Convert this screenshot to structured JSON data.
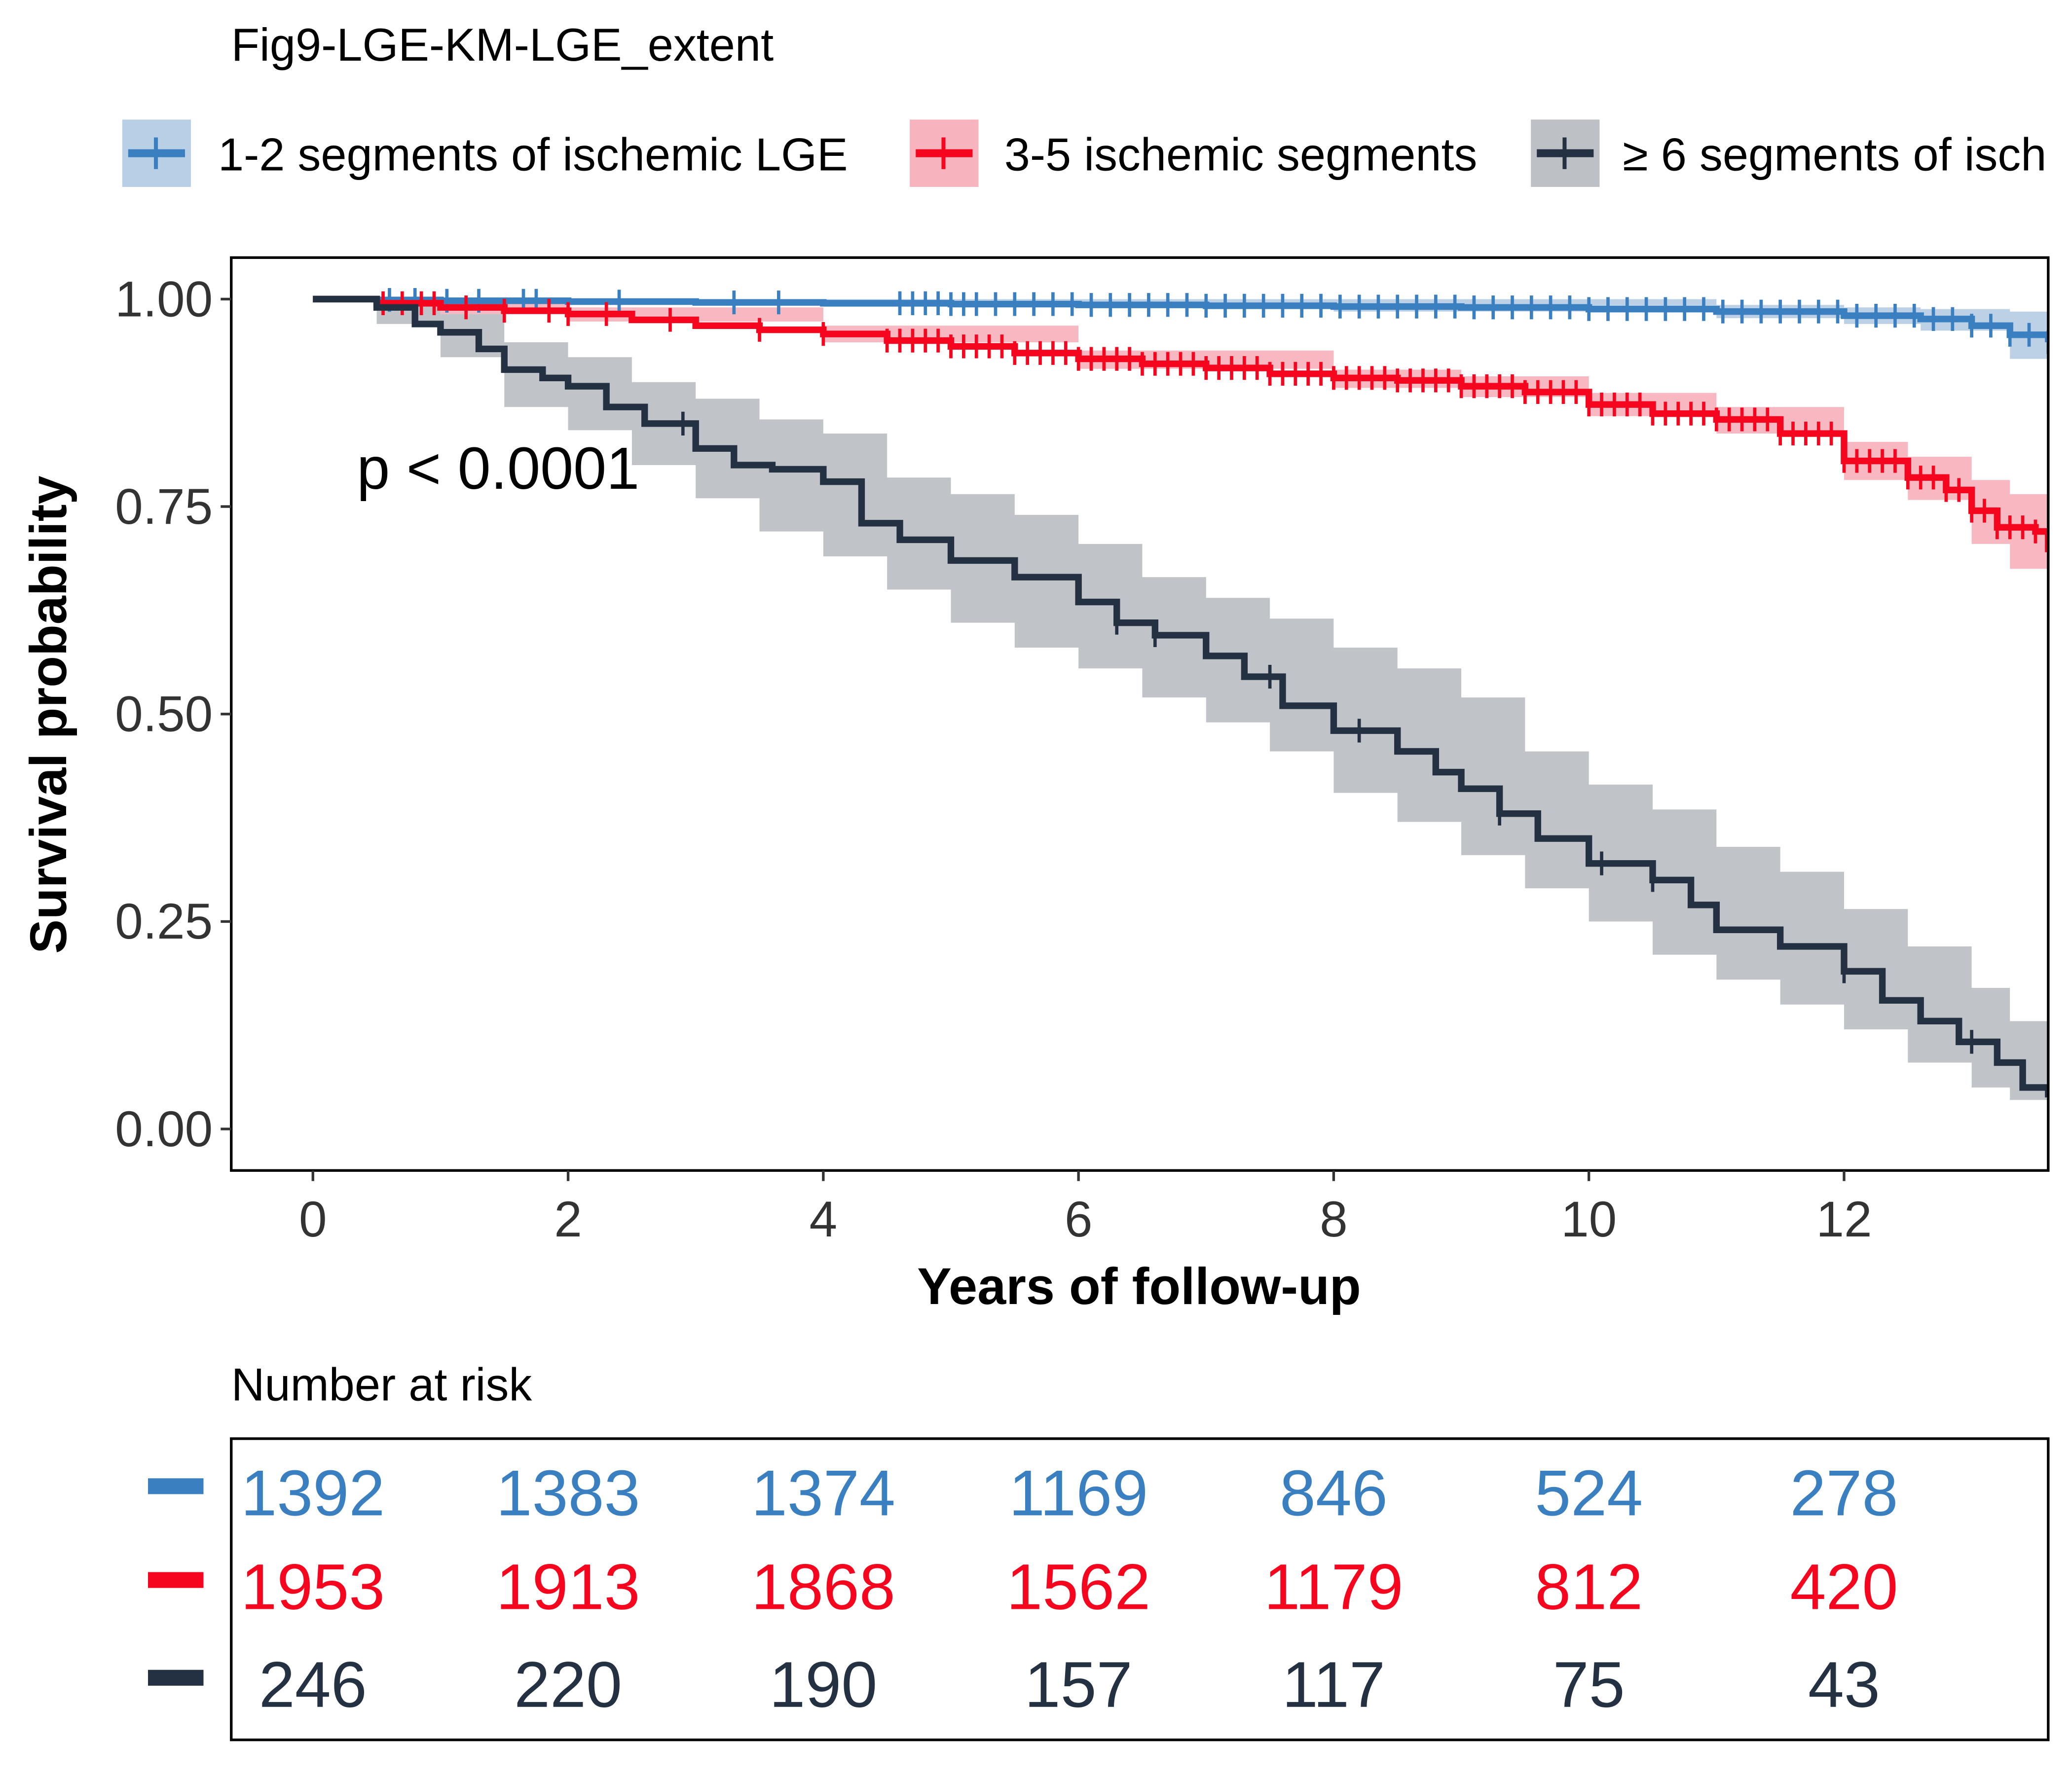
{
  "title": "Fig9-LGE-KM-LGE_extent",
  "legend_entries": [
    "1-2 segments of ischemic LGE",
    "3-5 ischemic segments",
    "≥ 6 segments of isch"
  ],
  "colors": {
    "blue": "#3A7FC0",
    "red": "#F5061E",
    "dark": "#243142",
    "blue_ci": "#B9CFE5",
    "red_ci": "#F8B4BE",
    "dark_ci": "#BDC1C6"
  },
  "p_value_label": "p < 0.0001",
  "risk_table": {
    "title": "Number at risk",
    "rows": [
      [
        "1392",
        "1383",
        "1374",
        "1169",
        "846",
        "524",
        "278"
      ],
      [
        "1953",
        "1913",
        "1868",
        "1562",
        "1179",
        "812",
        "420"
      ],
      [
        "246",
        "220",
        "190",
        "157",
        "117",
        "75",
        "43"
      ]
    ]
  },
  "chart_data": {
    "type": "line",
    "title": "Fig9-LGE-KM-LGE_extent",
    "xlabel": "Years of follow-up",
    "ylabel": "Survival probability",
    "xlim": [
      -0.64,
      13.6
    ],
    "ylim": [
      -0.05,
      1.05
    ],
    "x_ticks": [
      0,
      2,
      4,
      6,
      8,
      10,
      12
    ],
    "y_ticks": [
      0.0,
      0.25,
      0.5,
      0.75,
      1.0
    ],
    "x_tick_labels": [
      "0",
      "2",
      "4",
      "6",
      "8",
      "10",
      "12"
    ],
    "y_tick_labels": [
      "0.00",
      "0.25",
      "0.50",
      "0.75",
      "1.00"
    ],
    "grid": false,
    "legend_position": "top",
    "series": [
      {
        "name": "1-2 segments of ischemic LGE",
        "color_key": "blue",
        "points": [
          [
            0,
            1.0
          ],
          [
            0.5,
            0.999
          ],
          [
            1.0,
            0.998
          ],
          [
            2.0,
            0.997
          ],
          [
            3.0,
            0.996
          ],
          [
            4.0,
            0.995
          ],
          [
            5.0,
            0.994
          ],
          [
            6.0,
            0.993
          ],
          [
            7.0,
            0.992
          ],
          [
            8.0,
            0.991
          ],
          [
            9.0,
            0.99
          ],
          [
            10.0,
            0.988
          ],
          [
            11.0,
            0.985
          ],
          [
            12.0,
            0.98
          ],
          [
            12.6,
            0.976
          ],
          [
            13.0,
            0.968
          ],
          [
            13.3,
            0.957
          ],
          [
            13.6,
            0.948
          ]
        ],
        "ci_upper": [
          [
            0,
            1.0
          ],
          [
            4,
            1.0
          ],
          [
            8,
            1.0
          ],
          [
            11,
            0.993
          ],
          [
            12,
            0.99
          ],
          [
            12.6,
            0.988
          ],
          [
            13.3,
            0.985
          ],
          [
            13.6,
            0.983
          ]
        ],
        "ci_lower": [
          [
            0,
            1.0
          ],
          [
            4,
            0.991
          ],
          [
            8,
            0.985
          ],
          [
            11,
            0.977
          ],
          [
            12,
            0.97
          ],
          [
            12.6,
            0.962
          ],
          [
            13.3,
            0.928
          ],
          [
            13.6,
            0.912
          ]
        ],
        "censor_x": [
          0.6,
          0.8,
          1.05,
          1.3,
          1.65,
          1.75,
          2.4,
          3.3,
          3.65,
          4.6,
          4.7,
          4.8,
          4.9,
          5.0,
          5.1,
          5.2,
          5.35,
          5.5,
          5.65,
          5.8,
          5.95,
          6.1,
          6.25,
          6.4,
          6.55,
          6.7,
          6.85,
          7.0,
          7.15,
          7.3,
          7.45,
          7.6,
          7.75,
          7.9,
          8.05,
          8.2,
          8.35,
          8.5,
          8.65,
          8.8,
          8.95,
          9.1,
          9.25,
          9.4,
          9.55,
          9.7,
          9.85,
          10.0,
          10.15,
          10.3,
          10.45,
          10.6,
          10.75,
          10.9,
          11.05,
          11.2,
          11.35,
          11.5,
          11.65,
          11.8,
          11.95,
          12.1,
          12.25,
          12.4,
          12.55,
          12.7,
          12.85,
          13.0,
          13.15,
          13.3,
          13.45,
          13.6
        ]
      },
      {
        "name": "3-5 ischemic segments",
        "color_key": "red",
        "points": [
          [
            0,
            1.0
          ],
          [
            0.5,
            0.995
          ],
          [
            1.0,
            0.99
          ],
          [
            1.5,
            0.986
          ],
          [
            2.0,
            0.982
          ],
          [
            2.5,
            0.975
          ],
          [
            3.0,
            0.968
          ],
          [
            3.5,
            0.963
          ],
          [
            4.0,
            0.958
          ],
          [
            4.5,
            0.95
          ],
          [
            5.0,
            0.943
          ],
          [
            5.5,
            0.935
          ],
          [
            6.0,
            0.928
          ],
          [
            6.5,
            0.922
          ],
          [
            7.0,
            0.917
          ],
          [
            7.5,
            0.91
          ],
          [
            8.0,
            0.905
          ],
          [
            8.5,
            0.902
          ],
          [
            9.0,
            0.895
          ],
          [
            9.5,
            0.888
          ],
          [
            10.0,
            0.873
          ],
          [
            10.5,
            0.862
          ],
          [
            11.0,
            0.855
          ],
          [
            11.5,
            0.838
          ],
          [
            12.0,
            0.805
          ],
          [
            12.5,
            0.785
          ],
          [
            12.8,
            0.77
          ],
          [
            13.0,
            0.745
          ],
          [
            13.2,
            0.725
          ],
          [
            13.5,
            0.72
          ],
          [
            13.6,
            0.695
          ]
        ],
        "ci_upper": [
          [
            0,
            1.0
          ],
          [
            1,
            0.999
          ],
          [
            2,
            0.99
          ],
          [
            4,
            0.968
          ],
          [
            6,
            0.938
          ],
          [
            8,
            0.915
          ],
          [
            9,
            0.907
          ],
          [
            10,
            0.887
          ],
          [
            11,
            0.87
          ],
          [
            12,
            0.828
          ],
          [
            12.5,
            0.81
          ],
          [
            13,
            0.782
          ],
          [
            13.3,
            0.765
          ],
          [
            13.6,
            0.752
          ]
        ],
        "ci_lower": [
          [
            0,
            1.0
          ],
          [
            1,
            0.982
          ],
          [
            2,
            0.973
          ],
          [
            4,
            0.948
          ],
          [
            6,
            0.916
          ],
          [
            8,
            0.893
          ],
          [
            9,
            0.882
          ],
          [
            10,
            0.859
          ],
          [
            11,
            0.838
          ],
          [
            12,
            0.782
          ],
          [
            12.5,
            0.758
          ],
          [
            13,
            0.705
          ],
          [
            13.3,
            0.675
          ],
          [
            13.6,
            0.652
          ]
        ],
        "censor_x": [
          0.55,
          0.7,
          0.85,
          0.95,
          1.2,
          1.5,
          1.85,
          2.0,
          2.3,
          2.8,
          3.5,
          4.0,
          4.5,
          4.6,
          4.7,
          4.8,
          4.9,
          5.0,
          5.1,
          5.2,
          5.3,
          5.4,
          5.5,
          5.6,
          5.7,
          5.8,
          5.9,
          6.0,
          6.1,
          6.2,
          6.3,
          6.4,
          6.5,
          6.6,
          6.7,
          6.8,
          6.9,
          7.0,
          7.1,
          7.2,
          7.3,
          7.4,
          7.5,
          7.6,
          7.7,
          7.8,
          7.9,
          8.0,
          8.1,
          8.2,
          8.3,
          8.4,
          8.5,
          8.6,
          8.7,
          8.8,
          8.9,
          9.0,
          9.1,
          9.2,
          9.3,
          9.4,
          9.5,
          9.6,
          9.7,
          9.8,
          9.9,
          10.0,
          10.1,
          10.2,
          10.3,
          10.4,
          10.5,
          10.6,
          10.7,
          10.8,
          10.9,
          11.0,
          11.1,
          11.2,
          11.3,
          11.4,
          11.5,
          11.6,
          11.7,
          11.8,
          11.9,
          12.0,
          12.1,
          12.2,
          12.3,
          12.4,
          12.5,
          12.6,
          12.7,
          12.8,
          12.9,
          13.0,
          13.1,
          13.2,
          13.3,
          13.4,
          13.5
        ]
      },
      {
        "name": "≥ 6 segments of isch",
        "color_key": "dark",
        "points": [
          [
            0,
            1.0
          ],
          [
            0.5,
            0.99
          ],
          [
            0.8,
            0.97
          ],
          [
            1.0,
            0.96
          ],
          [
            1.3,
            0.94
          ],
          [
            1.5,
            0.915
          ],
          [
            1.8,
            0.905
          ],
          [
            2.0,
            0.895
          ],
          [
            2.3,
            0.87
          ],
          [
            2.6,
            0.85
          ],
          [
            3.0,
            0.82
          ],
          [
            3.3,
            0.8
          ],
          [
            3.6,
            0.795
          ],
          [
            4.0,
            0.78
          ],
          [
            4.3,
            0.73
          ],
          [
            4.6,
            0.71
          ],
          [
            5.0,
            0.685
          ],
          [
            5.5,
            0.665
          ],
          [
            6.0,
            0.635
          ],
          [
            6.3,
            0.61
          ],
          [
            6.6,
            0.595
          ],
          [
            7.0,
            0.57
          ],
          [
            7.3,
            0.545
          ],
          [
            7.6,
            0.51
          ],
          [
            8.0,
            0.48
          ],
          [
            8.5,
            0.455
          ],
          [
            8.8,
            0.43
          ],
          [
            9.0,
            0.41
          ],
          [
            9.3,
            0.38
          ],
          [
            9.6,
            0.35
          ],
          [
            10.0,
            0.32
          ],
          [
            10.5,
            0.3
          ],
          [
            10.8,
            0.27
          ],
          [
            11.0,
            0.24
          ],
          [
            11.5,
            0.22
          ],
          [
            12.0,
            0.19
          ],
          [
            12.3,
            0.155
          ],
          [
            12.6,
            0.13
          ],
          [
            12.9,
            0.105
          ],
          [
            13.2,
            0.08
          ],
          [
            13.4,
            0.05
          ],
          [
            13.6,
            0.038
          ]
        ],
        "ci_upper": [
          [
            0,
            1.0
          ],
          [
            0.5,
            1.0
          ],
          [
            1.0,
            0.982
          ],
          [
            1.5,
            0.948
          ],
          [
            2.0,
            0.93
          ],
          [
            2.5,
            0.9
          ],
          [
            3.0,
            0.88
          ],
          [
            3.5,
            0.855
          ],
          [
            4.0,
            0.838
          ],
          [
            4.5,
            0.785
          ],
          [
            5.0,
            0.765
          ],
          [
            5.5,
            0.74
          ],
          [
            6.0,
            0.705
          ],
          [
            6.5,
            0.665
          ],
          [
            7.0,
            0.64
          ],
          [
            7.5,
            0.615
          ],
          [
            8.0,
            0.58
          ],
          [
            8.5,
            0.555
          ],
          [
            9.0,
            0.52
          ],
          [
            9.5,
            0.455
          ],
          [
            10.0,
            0.415
          ],
          [
            10.5,
            0.385
          ],
          [
            11.0,
            0.34
          ],
          [
            11.5,
            0.31
          ],
          [
            12.0,
            0.265
          ],
          [
            12.5,
            0.22
          ],
          [
            13.0,
            0.17
          ],
          [
            13.3,
            0.13
          ],
          [
            13.6,
            0.095
          ]
        ],
        "ci_lower": [
          [
            0,
            1.0
          ],
          [
            0.5,
            0.97
          ],
          [
            1.0,
            0.93
          ],
          [
            1.5,
            0.87
          ],
          [
            2.0,
            0.842
          ],
          [
            2.5,
            0.8
          ],
          [
            3.0,
            0.76
          ],
          [
            3.5,
            0.72
          ],
          [
            4.0,
            0.69
          ],
          [
            4.5,
            0.65
          ],
          [
            5.0,
            0.61
          ],
          [
            5.5,
            0.58
          ],
          [
            6.0,
            0.555
          ],
          [
            6.5,
            0.52
          ],
          [
            7.0,
            0.49
          ],
          [
            7.5,
            0.455
          ],
          [
            8.0,
            0.405
          ],
          [
            8.5,
            0.37
          ],
          [
            9.0,
            0.33
          ],
          [
            9.5,
            0.29
          ],
          [
            10.0,
            0.25
          ],
          [
            10.5,
            0.21
          ],
          [
            11.0,
            0.18
          ],
          [
            11.5,
            0.15
          ],
          [
            12.0,
            0.12
          ],
          [
            12.5,
            0.08
          ],
          [
            13.0,
            0.05
          ],
          [
            13.3,
            0.035
          ],
          [
            13.6,
            0.022
          ]
        ],
        "censor_x": [
          2.9,
          6.3,
          6.6,
          7.5,
          8.2,
          9.3,
          10.1,
          10.5,
          12.0,
          13.0
        ]
      }
    ]
  }
}
